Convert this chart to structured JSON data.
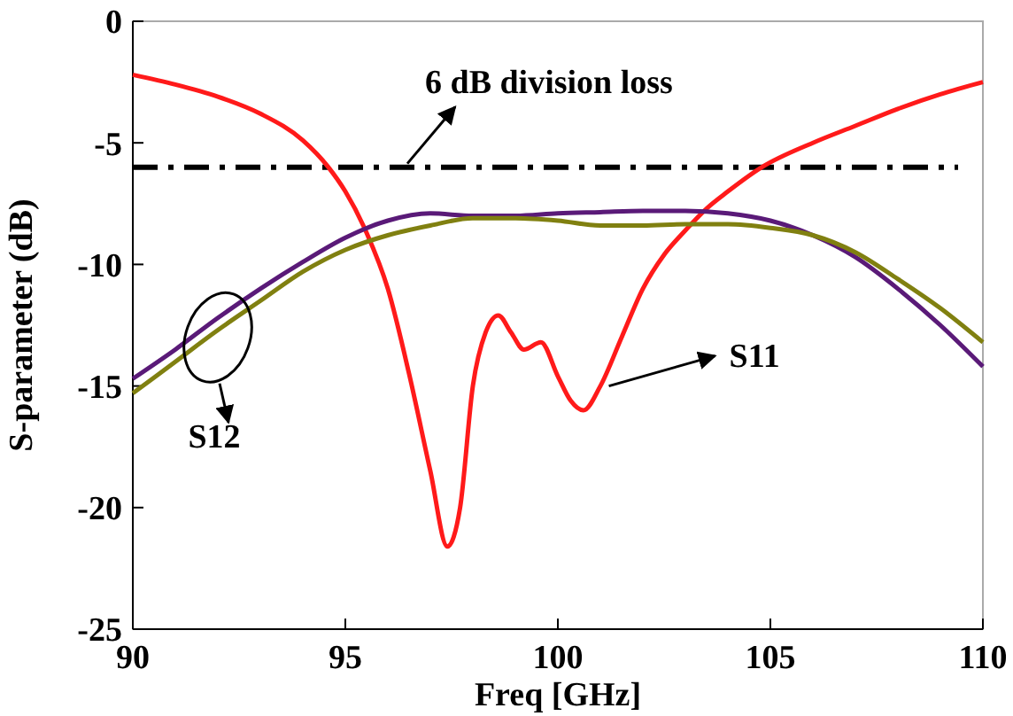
{
  "chart_data": {
    "type": "line",
    "xlabel": "Freq [GHz]",
    "ylabel": "S-parameter (dB)",
    "xlim": [
      90,
      110
    ],
    "ylim": [
      -25,
      0
    ],
    "xticks": [
      90,
      95,
      100,
      105,
      110
    ],
    "yticks": [
      -25,
      -20,
      -15,
      -10,
      -5,
      0
    ],
    "grid": false,
    "marker": "none",
    "line_style": "solid",
    "series": [
      {
        "color": "#ff1a1a",
        "x": [
          90,
          91,
          92,
          93,
          94,
          94.6,
          95,
          95.5,
          96,
          96.5,
          97,
          97.4,
          97.7,
          98,
          98.3,
          98.6,
          98.9,
          99.2,
          99.6,
          100,
          100.3,
          100.6,
          101,
          101.5,
          102,
          102.5,
          103,
          103.5,
          104,
          104.8,
          106,
          107,
          108,
          109,
          110
        ],
        "values": [
          -2.2,
          -2.6,
          -3.1,
          -3.8,
          -4.9,
          -6,
          -7,
          -8.7,
          -11,
          -14.5,
          -18.5,
          -21.6,
          -20,
          -15,
          -12.8,
          -12.1,
          -12.8,
          -13.5,
          -13.2,
          -14.6,
          -15.6,
          -16,
          -15,
          -13,
          -11,
          -9.6,
          -8.6,
          -7.7,
          -7,
          -6,
          -5,
          -4.3,
          -3.6,
          -3,
          -2.5
        ]
      },
      {
        "color": "#5a1a78",
        "x": [
          90,
          91,
          92,
          93,
          94,
          95,
          96,
          97,
          98,
          99,
          100,
          101,
          102,
          103,
          104,
          105,
          106,
          107,
          108,
          109,
          110
        ],
        "values": [
          -14.7,
          -13.5,
          -12.2,
          -11,
          -9.9,
          -8.9,
          -8.2,
          -7.9,
          -8,
          -8,
          -7.9,
          -7.85,
          -7.8,
          -7.8,
          -7.9,
          -8.2,
          -8.8,
          -9.7,
          -11,
          -12.5,
          -14.2
        ]
      },
      {
        "color": "#808010",
        "x": [
          90,
          91,
          92,
          93,
          94,
          95,
          96,
          97,
          98,
          99,
          100,
          101,
          102,
          103,
          104,
          105,
          106,
          107,
          108,
          109,
          110
        ],
        "values": [
          -15.3,
          -14,
          -12.7,
          -11.5,
          -10.3,
          -9.4,
          -8.8,
          -8.4,
          -8.1,
          -8.1,
          -8.2,
          -8.4,
          -8.4,
          -8.35,
          -8.35,
          -8.5,
          -8.8,
          -9.5,
          -10.6,
          -11.8,
          -13.2
        ]
      }
    ],
    "ref_lines": [
      {
        "axis": "y",
        "value": -6,
        "label": "6 dB division loss",
        "color": "#000000",
        "line_style": "dashdot"
      }
    ],
    "annotations": [
      {
        "text": "S11",
        "x": 101.2,
        "y": -15
      },
      {
        "text": "S12",
        "x": 92,
        "y": -13
      }
    ]
  }
}
